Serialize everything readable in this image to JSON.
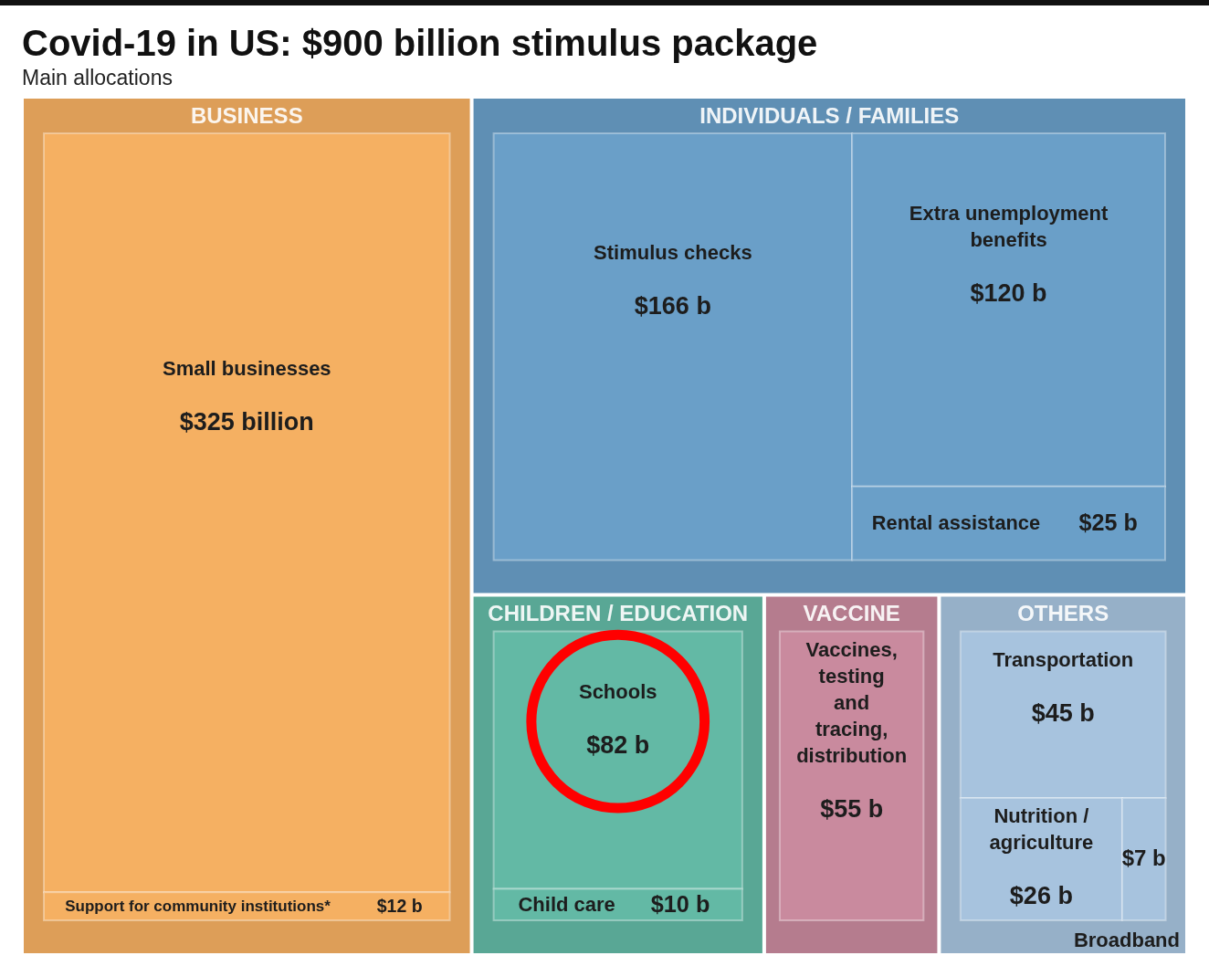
{
  "chart_data": {
    "type": "other",
    "title": "Covid-19 in US: $900 billion stimulus package",
    "subtitle": "Main allocations",
    "categories": [
      "Small businesses",
      "Support for community institutions*",
      "Stimulus checks",
      "Extra unemployment benefits",
      "Rental assistance",
      "Schools",
      "Child care",
      "Vaccines, testing and tracing, distribution",
      "Transportation",
      "Nutrition / agriculture",
      "Broadband"
    ],
    "series": [
      {
        "name": "BUSINESS",
        "color": "#f5b062",
        "values": [
          325,
          12,
          null,
          null,
          null,
          null,
          null,
          null,
          null,
          null,
          null
        ],
        "value_labels": [
          "$325 billion",
          "$12 b",
          null,
          null,
          null,
          null,
          null,
          null,
          null,
          null,
          null
        ]
      },
      {
        "name": "INDIVIDUALS / FAMILIES",
        "color": "#6a9fc8",
        "values": [
          null,
          null,
          166,
          120,
          25,
          null,
          null,
          null,
          null,
          null,
          null
        ],
        "value_labels": [
          null,
          null,
          "$166 b",
          "$120 b",
          "$25 b",
          null,
          null,
          null,
          null,
          null,
          null
        ]
      },
      {
        "name": "CHILDREN / EDUCATION",
        "color": "#63b9a5",
        "values": [
          null,
          null,
          null,
          null,
          null,
          82,
          10,
          null,
          null,
          null,
          null
        ],
        "value_labels": [
          null,
          null,
          null,
          null,
          null,
          "$82 b",
          "$10 b",
          null,
          null,
          null,
          null
        ]
      },
      {
        "name": "VACCINE",
        "color": "#c98a9e",
        "values": [
          null,
          null,
          null,
          null,
          null,
          null,
          null,
          55,
          null,
          null,
          null
        ],
        "value_labels": [
          null,
          null,
          null,
          null,
          null,
          null,
          null,
          "$55 b",
          null,
          null,
          null
        ]
      },
      {
        "name": "OTHERS",
        "color": "#a7c3de",
        "values": [
          null,
          null,
          null,
          null,
          null,
          null,
          null,
          null,
          45,
          26,
          7
        ],
        "value_labels": [
          null,
          null,
          null,
          null,
          null,
          null,
          null,
          null,
          "$45 b",
          "$26 b",
          "$7 b"
        ]
      }
    ]
  }
}
